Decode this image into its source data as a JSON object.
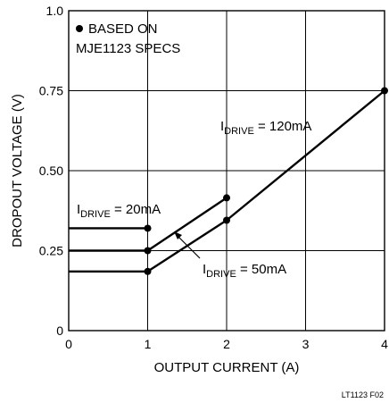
{
  "chart_data": {
    "type": "line",
    "xlabel": "OUTPUT CURRENT (A)",
    "ylabel": "DROPOUT VOLTAGE (V)",
    "xlim": [
      0,
      4
    ],
    "ylim": [
      0,
      1.0
    ],
    "x_ticks": [
      0,
      1,
      2,
      3,
      4
    ],
    "x_tick_labels": [
      "0",
      "1",
      "2",
      "3",
      "4"
    ],
    "y_ticks": [
      0,
      0.25,
      0.5,
      0.75,
      1.0
    ],
    "y_tick_labels": [
      "0",
      "0.25",
      "0.50",
      "0.75",
      "1.0"
    ],
    "grid": true,
    "series": [
      {
        "name": "IDRIVE = 20mA",
        "label_main": "I",
        "label_sub": "DRIVE",
        "label_rest": " = 20mA",
        "x": [
          0,
          1
        ],
        "y": [
          0.32,
          0.32
        ],
        "markers_at": [
          1
        ]
      },
      {
        "name": "IDRIVE = 50mA",
        "label_main": "I",
        "label_sub": "DRIVE",
        "label_rest": " = 50mA",
        "x": [
          0,
          1,
          2
        ],
        "y": [
          0.25,
          0.25,
          0.415
        ],
        "markers_at": [
          1,
          2
        ]
      },
      {
        "name": "IDRIVE = 120mA",
        "label_main": "I",
        "label_sub": "DRIVE",
        "label_rest": " = 120mA",
        "x": [
          0,
          1,
          2,
          4
        ],
        "y": [
          0.185,
          0.185,
          0.345,
          0.75
        ],
        "markers_at": [
          1,
          2,
          4
        ]
      }
    ],
    "legend": {
      "marker": "filled-circle",
      "line1": "BASED ON",
      "line2": "MJE1123 SPECS",
      "placement": "top-left"
    },
    "figure_id": "LT1123 F02"
  }
}
